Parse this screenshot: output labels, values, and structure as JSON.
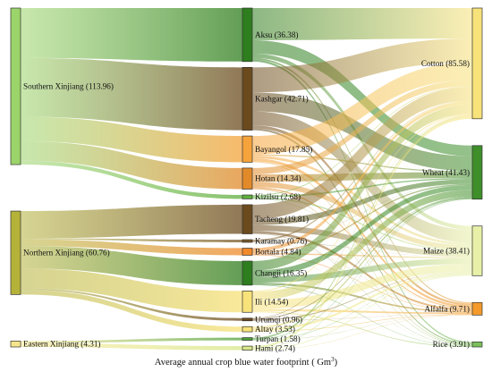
{
  "caption": {
    "text": "Average annual crop blue water footprint ( Gm",
    "unit_exponent": "3",
    "close": ")"
  },
  "regions": [
    {
      "id": "south",
      "label": "Southern Xinjiang (113.96)",
      "value": 113.96,
      "color": "#9bd46a"
    },
    {
      "id": "north",
      "label": "Northern Xinjiang (60.76)",
      "value": 60.76,
      "color": "#b5b23a"
    },
    {
      "id": "east",
      "label": "Eastern Xinjiang (4.31)",
      "value": 4.31,
      "color": "#f6e58c"
    }
  ],
  "prefectures": [
    {
      "id": "aksu",
      "label": "Aksu (36.38)",
      "value": 36.38,
      "region": "south",
      "color": "#2e7d1e"
    },
    {
      "id": "kashgar",
      "label": "Kashgar (42.71)",
      "value": 42.71,
      "region": "south",
      "color": "#6b4a1e"
    },
    {
      "id": "bayangol",
      "label": "Bayangol (17.85)",
      "value": 17.85,
      "region": "south",
      "color": "#f5a33a"
    },
    {
      "id": "hotan",
      "label": "Hotan (14.34)",
      "value": 14.34,
      "region": "south",
      "color": "#e28a2a"
    },
    {
      "id": "kizilsu",
      "label": "Kizilsu (2.68)",
      "value": 2.68,
      "region": "south",
      "color": "#5fae3e"
    },
    {
      "id": "tacheng",
      "label": "Tacheng (19.81)",
      "value": 19.81,
      "region": "north",
      "color": "#6b4a1e"
    },
    {
      "id": "karamay",
      "label": "Karamay (0.76)",
      "value": 0.76,
      "region": "north",
      "color": "#7a5a2a"
    },
    {
      "id": "bortala",
      "label": "Bortala (4.84)",
      "value": 4.84,
      "region": "north",
      "color": "#f08a2a"
    },
    {
      "id": "changji",
      "label": "Changji (16.35)",
      "value": 16.35,
      "region": "north",
      "color": "#2e7d1e"
    },
    {
      "id": "ili",
      "label": "Ili (14.54)",
      "value": 14.54,
      "region": "north",
      "color": "#f8e27a"
    },
    {
      "id": "urumqi",
      "label": "Urumqi (0.96)",
      "value": 0.96,
      "region": "north",
      "color": "#6b4a1e"
    },
    {
      "id": "altay",
      "label": "Altay (3.53)",
      "value": 3.53,
      "region": "north",
      "color": "#f8e27a"
    },
    {
      "id": "turpan",
      "label": "Turpan (1.58)",
      "value": 1.58,
      "region": "east",
      "color": "#4fa03a"
    },
    {
      "id": "hami",
      "label": "Hami (2.74)",
      "value": 2.74,
      "region": "east",
      "color": "#d8e88a"
    }
  ],
  "crops": [
    {
      "id": "cotton",
      "label": "Cotton (85.58)",
      "value": 85.58,
      "color": "#f8e27a"
    },
    {
      "id": "wheat",
      "label": "Wheat (41.43)",
      "value": 41.43,
      "color": "#3e8e2a"
    },
    {
      "id": "maize",
      "label": "Maize (38.41)",
      "value": 38.41,
      "color": "#e8f0a8"
    },
    {
      "id": "alfalfa",
      "label": "Alfalfa (9.71)",
      "value": 9.71,
      "color": "#f39a2a"
    },
    {
      "id": "rice",
      "label": "Rice (3.91)",
      "value": 3.91,
      "color": "#7cc05a"
    }
  ]
}
